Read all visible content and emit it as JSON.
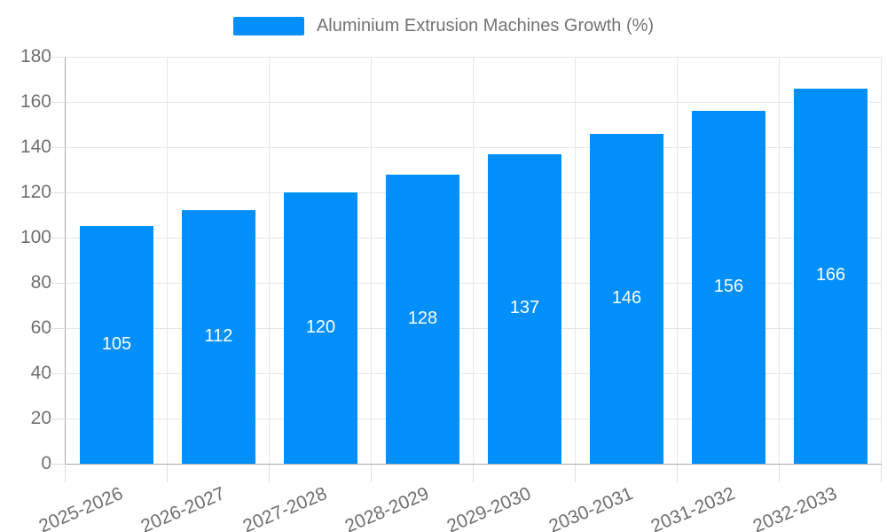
{
  "legend": {
    "label": "Aluminium Extrusion Machines Growth (%)"
  },
  "chart_data": {
    "type": "bar",
    "title": "Aluminium Extrusion Machines Growth (%)",
    "categories": [
      "2025-2026",
      "2026-2027",
      "2027-2028",
      "2028-2029",
      "2029-2030",
      "2030-2031",
      "2031-2032",
      "2032-2033"
    ],
    "series": [
      {
        "name": "Aluminium Extrusion Machines Growth (%)",
        "values": [
          105,
          112,
          120,
          128,
          137,
          146,
          156,
          166
        ],
        "color": "#008FFB"
      }
    ],
    "xlabel": "",
    "ylabel": "",
    "ylim": [
      0,
      180
    ],
    "yticks": [
      0,
      20,
      40,
      60,
      80,
      100,
      120,
      140,
      160,
      180
    ],
    "grid": true,
    "legend_position": "top-center",
    "data_labels": {
      "position": "inside-center",
      "color": "#ffffff"
    }
  },
  "colors": {
    "bar": "#008FFB",
    "grid_line": "#e7e7e7",
    "axis_line": "#a9a9a9",
    "tick_line": "#dedede",
    "axis_text": "#6f6f6f",
    "legend_text": "#737373",
    "value_label": "#ffffff",
    "background": "#ffffff"
  }
}
